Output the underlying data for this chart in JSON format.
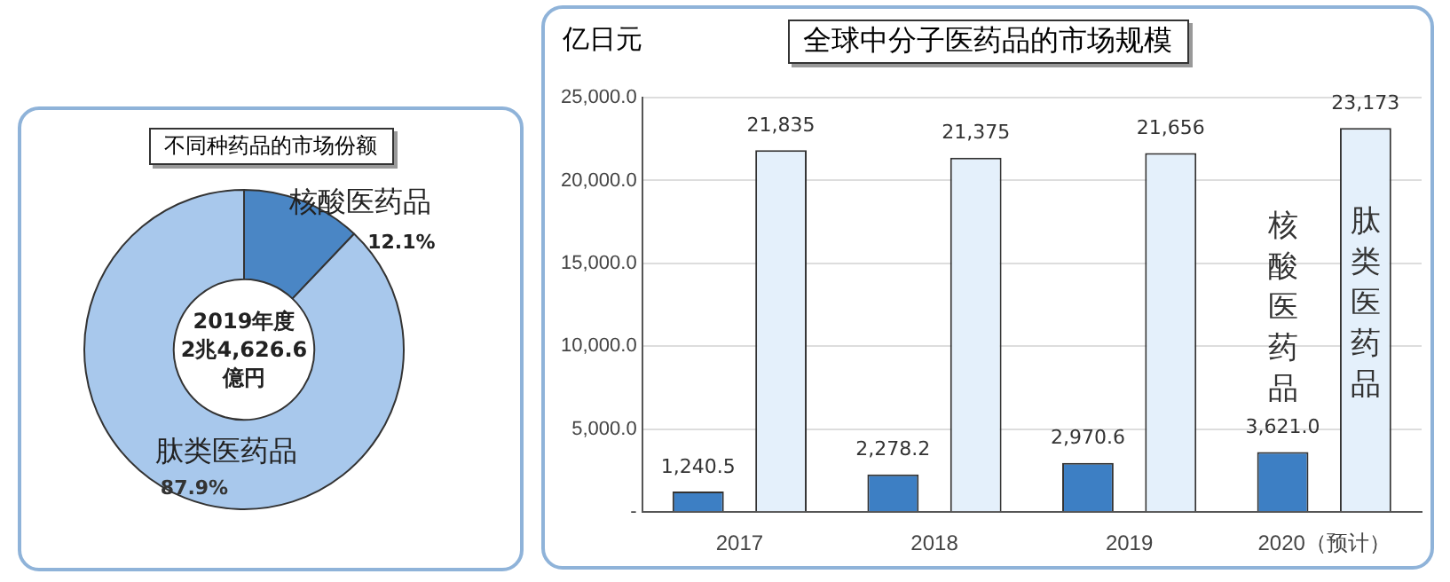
{
  "chart_data": [
    {
      "type": "donut",
      "title": "不同种药品的市场份额",
      "categories": [
        "核酸医药品",
        "肽类医药品"
      ],
      "values": [
        12.1,
        87.9
      ],
      "colors": [
        "#4a86c5",
        "#a8c8ec"
      ],
      "value_labels": [
        "12.1%",
        "87.9%"
      ],
      "annotations": [
        "2019年度\n2兆4,626.6\n億円"
      ]
    },
    {
      "type": "bar",
      "title": "全球中分子医药品的市场规模",
      "ylabel": "亿日元",
      "categories": [
        "2017",
        "2018",
        "2019",
        "2020（预计）"
      ],
      "series": [
        {
          "name": "核酸医药品",
          "color": "#3d7fc4",
          "values": [
            1240.5,
            2278.2,
            2970.6,
            3621.0
          ],
          "value_labels": [
            "1,240.5",
            "2,278.2",
            "2,970.6",
            "3,621.0"
          ]
        },
        {
          "name": "肽类医药品",
          "color": "#e4f0fb",
          "values": [
            21835,
            21375,
            21656,
            23173
          ],
          "value_labels": [
            "21,835",
            "21,375",
            "21,656",
            "23,173"
          ]
        }
      ],
      "ylim": [
        0,
        25000
      ],
      "yticks": [
        {
          "value": 0,
          "label": "-"
        },
        {
          "value": 5000,
          "label": "5,000.0"
        },
        {
          "value": 10000,
          "label": "10,000.0"
        },
        {
          "value": 15000,
          "label": "15,000.0"
        },
        {
          "value": 20000,
          "label": "20,000.0"
        },
        {
          "value": 25000,
          "label": "25,000.0"
        }
      ],
      "grid": "y"
    }
  ]
}
